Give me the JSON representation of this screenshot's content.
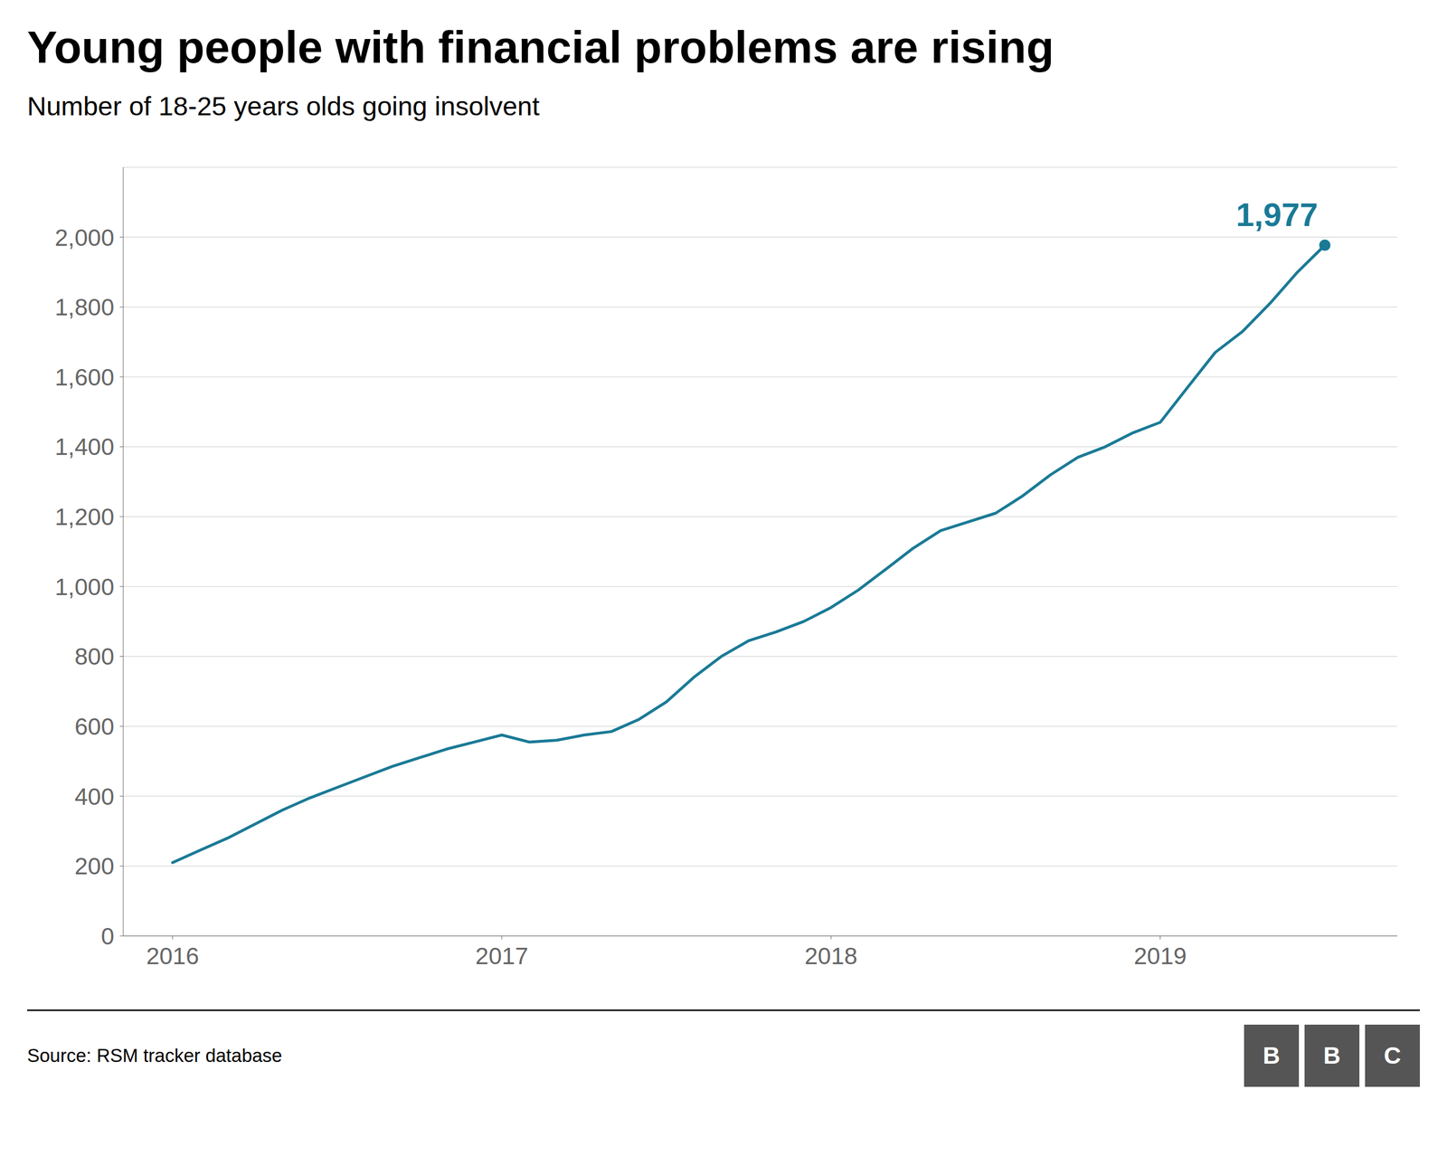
{
  "chart_data": {
    "type": "line",
    "title": "Young people with financial problems are rising",
    "subtitle": "Number of 18-25 years olds going insolvent",
    "source": "Source: RSM tracker database",
    "logo": {
      "text": "BBC",
      "color": "#555555"
    },
    "x": [
      2016.0,
      2016.083,
      2016.167,
      2016.25,
      2016.333,
      2016.417,
      2016.5,
      2016.583,
      2016.667,
      2016.75,
      2016.833,
      2016.917,
      2017.0,
      2017.083,
      2017.167,
      2017.25,
      2017.333,
      2017.417,
      2017.5,
      2017.583,
      2017.667,
      2017.75,
      2017.833,
      2017.917,
      2018.0,
      2018.083,
      2018.167,
      2018.25,
      2018.333,
      2018.417,
      2018.5,
      2018.583,
      2018.667,
      2018.75,
      2018.833,
      2018.917,
      2019.0,
      2019.083,
      2019.167,
      2019.25,
      2019.333,
      2019.417,
      2019.5
    ],
    "values": [
      210,
      245,
      280,
      320,
      360,
      395,
      425,
      455,
      485,
      510,
      535,
      555,
      575,
      555,
      560,
      575,
      585,
      620,
      670,
      740,
      800,
      845,
      870,
      900,
      940,
      990,
      1050,
      1110,
      1160,
      1185,
      1210,
      1260,
      1320,
      1370,
      1400,
      1440,
      1470,
      1570,
      1670,
      1730,
      1810,
      1900,
      1977
    ],
    "color": "#1a7a96",
    "xlim": [
      2015.85,
      2019.72
    ],
    "ylim": [
      0,
      2200
    ],
    "xticks": [
      2016,
      2017,
      2018,
      2019
    ],
    "yticks": [
      0,
      200,
      400,
      600,
      800,
      {
        "value": 1000,
        "label": "1,000"
      },
      {
        "value": 1200,
        "label": "1,200"
      },
      {
        "value": 1400,
        "label": "1,400"
      },
      {
        "value": 1600,
        "label": "1,600"
      },
      {
        "value": 1800,
        "label": "1,800"
      },
      {
        "value": 2000,
        "label": "2,000"
      }
    ],
    "grid": true,
    "annotations": [
      {
        "x": 2019.5,
        "y": 1977,
        "text": "1,977",
        "marker": "circle",
        "color": "#1a7a96"
      }
    ]
  }
}
